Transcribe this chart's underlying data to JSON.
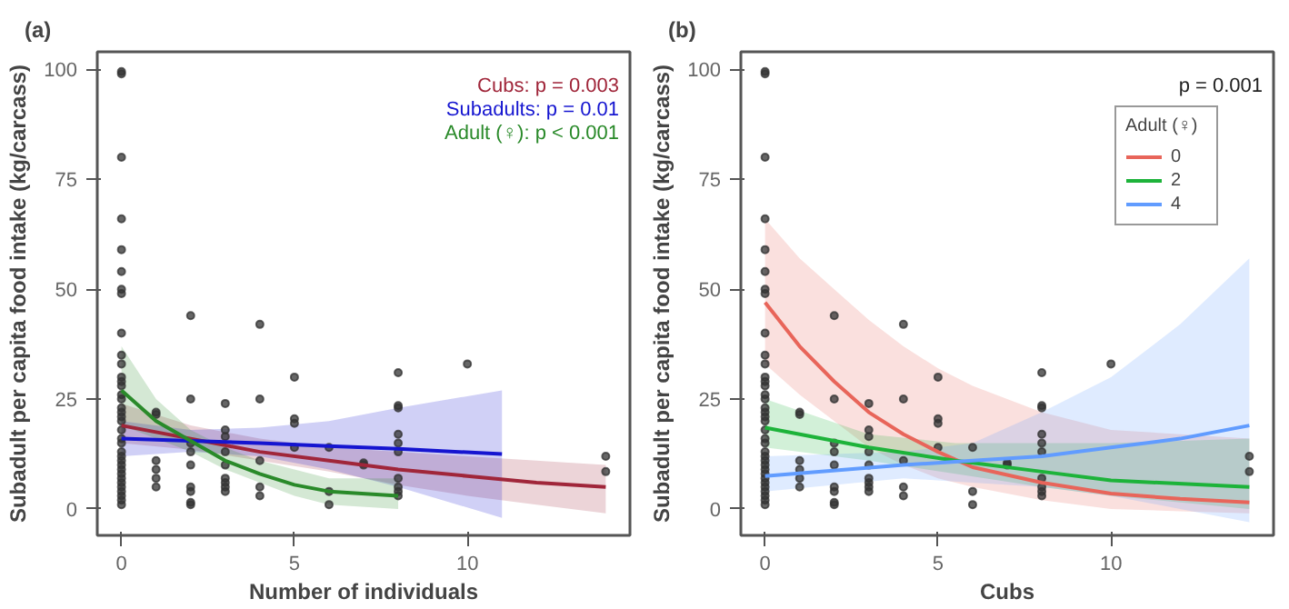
{
  "chart_data": [
    {
      "type": "scatter",
      "title": "(a)",
      "xlabel": "Number of individuals",
      "ylabel": "Subadult per capita food intake (kg/carcass)",
      "xlim": [
        -0.7,
        14.7
      ],
      "ylim": [
        -6,
        104
      ],
      "xticks": [
        0,
        5,
        10
      ],
      "yticks": [
        0,
        25,
        50,
        75,
        100
      ],
      "grid": false,
      "legend": false,
      "annotations": [
        "Cubs: p = 0.003",
        "Subadults: p = 0.01",
        "Adult (♀): p < 0.001"
      ],
      "series": [
        {
          "marker": "circle",
          "color": "#333333",
          "x": [
            0,
            0,
            0,
            0,
            0,
            0,
            0,
            0,
            0,
            0,
            0,
            0,
            0,
            0,
            0,
            0,
            0,
            0,
            0,
            0,
            0,
            0,
            0,
            0,
            0,
            0,
            0,
            0,
            0,
            0,
            0,
            0,
            0,
            0,
            0,
            0,
            1,
            1,
            1,
            1,
            1,
            1,
            2,
            2,
            2,
            2,
            2,
            2,
            2,
            2,
            2,
            3,
            3,
            3,
            3,
            3,
            3,
            3,
            3,
            3,
            4,
            4,
            4,
            4,
            4,
            5,
            5,
            5,
            5,
            6,
            6,
            6,
            7,
            7,
            8,
            8,
            8,
            8,
            8,
            8,
            8,
            8,
            8,
            8,
            10,
            14,
            14
          ],
          "values": [
            99.5,
            99,
            80,
            66,
            59,
            54,
            50,
            49,
            40,
            35,
            33,
            30,
            29,
            28,
            26,
            25,
            23,
            22,
            21,
            20,
            18,
            16,
            15,
            13,
            12,
            11,
            10,
            9,
            8,
            7,
            6,
            5,
            4,
            3,
            2,
            1,
            22,
            21.5,
            11,
            9,
            7,
            5,
            44,
            25,
            15,
            13,
            10,
            5,
            4,
            1.5,
            1,
            24,
            18,
            16.5,
            13,
            10,
            7,
            6,
            5,
            4,
            42,
            25,
            11,
            5,
            3,
            30,
            20.5,
            19.5,
            14,
            14,
            4,
            1,
            10,
            10.5,
            31,
            23.5,
            23,
            17,
            15,
            13,
            7,
            5,
            4,
            3,
            33,
            12,
            8.5
          ]
        },
        {
          "type": "line",
          "marker": "none",
          "line_style": "solid",
          "color": "#a0263a",
          "x": [
            0,
            2,
            4,
            6,
            8,
            10,
            12,
            14
          ],
          "values": [
            19,
            16,
            13,
            11,
            9,
            7.5,
            6,
            5
          ],
          "lower": [
            15,
            13.5,
            11,
            8.5,
            5.5,
            3,
            1,
            -1
          ],
          "upper": [
            24,
            19,
            16,
            14,
            13,
            12,
            11,
            10
          ]
        },
        {
          "type": "line",
          "marker": "none",
          "line_style": "solid",
          "color": "#1515d0",
          "x": [
            0,
            2,
            4,
            6,
            8,
            11
          ],
          "values": [
            16,
            15.5,
            15,
            14.3,
            13.7,
            12.5
          ],
          "lower": [
            12,
            13,
            12,
            9,
            5,
            -2
          ],
          "upper": [
            20,
            18,
            18.5,
            20,
            23,
            27
          ]
        },
        {
          "type": "line",
          "marker": "none",
          "line_style": "solid",
          "color": "#2a8a2a",
          "x": [
            0,
            1,
            2,
            3,
            4,
            5,
            6,
            8
          ],
          "values": [
            27,
            20,
            15.5,
            11,
            8,
            5.5,
            4,
            3
          ],
          "lower": [
            19,
            16,
            13,
            9,
            6,
            3,
            1,
            0
          ],
          "upper": [
            37,
            25,
            18,
            14,
            11,
            9,
            7,
            7
          ]
        }
      ]
    },
    {
      "type": "scatter",
      "title": "(b)",
      "xlabel": "Cubs",
      "ylabel": "Subadult per capita food intake (kg/carcass)",
      "xlim": [
        -0.7,
        14.7
      ],
      "ylim": [
        -6,
        104
      ],
      "xticks": [
        0,
        5,
        10
      ],
      "yticks": [
        0,
        25,
        50,
        75,
        100
      ],
      "grid": false,
      "legend": "top right",
      "legend_title": "Adult (♀)",
      "annotations": [
        "p = 0.001"
      ],
      "series": [
        {
          "marker": "circle",
          "color": "#333333",
          "x": [
            0,
            0,
            0,
            0,
            0,
            0,
            0,
            0,
            0,
            0,
            0,
            0,
            0,
            0,
            0,
            0,
            0,
            0,
            0,
            0,
            0,
            0,
            0,
            0,
            0,
            0,
            0,
            0,
            0,
            0,
            0,
            0,
            0,
            0,
            0,
            0,
            1,
            1,
            1,
            1,
            1,
            1,
            2,
            2,
            2,
            2,
            2,
            2,
            2,
            2,
            2,
            3,
            3,
            3,
            3,
            3,
            3,
            3,
            3,
            3,
            4,
            4,
            4,
            4,
            4,
            5,
            5,
            5,
            5,
            6,
            6,
            6,
            7,
            7,
            8,
            8,
            8,
            8,
            8,
            8,
            8,
            8,
            8,
            8,
            10,
            14,
            14
          ],
          "values": [
            99.5,
            99,
            80,
            66,
            59,
            54,
            50,
            49,
            40,
            35,
            33,
            30,
            29,
            28,
            26,
            25,
            23,
            22,
            21,
            20,
            18,
            16,
            15,
            13,
            12,
            11,
            10,
            9,
            8,
            7,
            6,
            5,
            4,
            3,
            2,
            1,
            22,
            21.5,
            11,
            9,
            7,
            5,
            44,
            25,
            15,
            13,
            10,
            5,
            4,
            1.5,
            1,
            24,
            18,
            16.5,
            13,
            10,
            7,
            6,
            5,
            4,
            42,
            25,
            11,
            5,
            3,
            30,
            20.5,
            19.5,
            14,
            14,
            4,
            1,
            10,
            10.5,
            31,
            23.5,
            23,
            17,
            15,
            13,
            7,
            5,
            4,
            3,
            33,
            12,
            8.5
          ]
        },
        {
          "type": "line",
          "name": "0",
          "marker": "none",
          "line_style": "solid",
          "color": "#e8655a",
          "x": [
            0,
            1,
            2,
            3,
            4,
            5,
            6,
            8,
            10,
            12,
            14
          ],
          "values": [
            47,
            37,
            29,
            22,
            17,
            13,
            9.5,
            6,
            3.5,
            2.3,
            1.5
          ],
          "lower": [
            33,
            26,
            20,
            14,
            10,
            7,
            5,
            2,
            0,
            -0.5,
            -1
          ],
          "upper": [
            66,
            57,
            50,
            43,
            37,
            32,
            28,
            22,
            18,
            17,
            16
          ]
        },
        {
          "type": "line",
          "name": "2",
          "marker": "none",
          "line_style": "solid",
          "color": "#1db33a",
          "x": [
            0,
            3,
            5.5,
            8,
            10,
            14
          ],
          "values": [
            18.5,
            14,
            11,
            8.5,
            6.5,
            5
          ],
          "lower": [
            14,
            11,
            8,
            5,
            3,
            0
          ],
          "upper": [
            25,
            17,
            15,
            15,
            15,
            16
          ]
        },
        {
          "type": "line",
          "name": "4",
          "marker": "none",
          "line_style": "solid",
          "color": "#619cff",
          "x": [
            0,
            4,
            6,
            8,
            10,
            12,
            14
          ],
          "values": [
            7.5,
            10,
            11,
            12,
            14,
            16,
            19
          ],
          "lower": [
            4,
            7,
            6,
            5,
            3,
            0,
            -3
          ],
          "upper": [
            12,
            13,
            15,
            22,
            30,
            42,
            57
          ]
        }
      ]
    }
  ]
}
